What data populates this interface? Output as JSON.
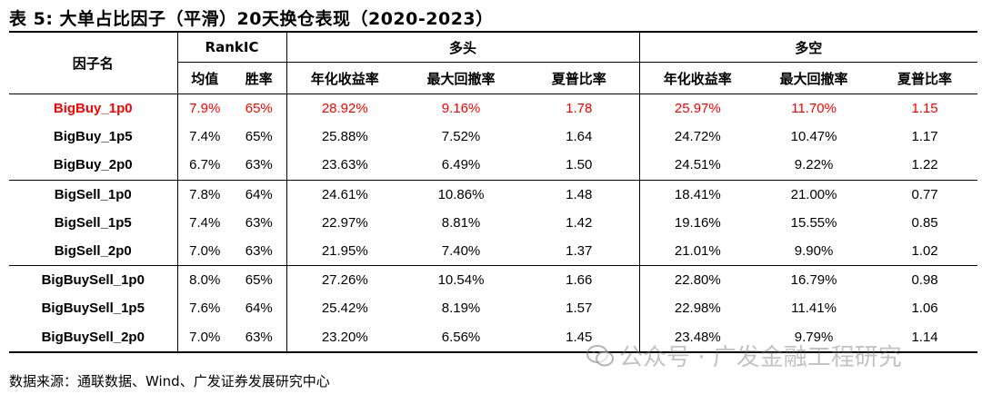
{
  "title": "表 5: 大单占比因子（平滑）20天换仓表现（2020-2023）",
  "header": {
    "factor_name": "因子名",
    "rankic": "RankIC",
    "long": "多头",
    "longshort": "多空",
    "mean": "均值",
    "winrate": "胜率",
    "long_return": "年化收益率",
    "long_mdd": "最大回撤率",
    "long_sharpe": "夏普比率",
    "ls_return": "年化收益率",
    "ls_mdd": "最大回撤率",
    "ls_sharpe": "夏普比率"
  },
  "rows": [
    {
      "name": "BigBuy_1p0",
      "mean": "7.9%",
      "win": "65%",
      "lret": "28.92%",
      "lmdd": "9.16%",
      "lsh": "1.78",
      "sret": "25.97%",
      "smdd": "11.70%",
      "ssh": "1.15",
      "highlight": true
    },
    {
      "name": "BigBuy_1p5",
      "mean": "7.4%",
      "win": "65%",
      "lret": "25.88%",
      "lmdd": "7.52%",
      "lsh": "1.64",
      "sret": "24.72%",
      "smdd": "10.47%",
      "ssh": "1.17"
    },
    {
      "name": "BigBuy_2p0",
      "mean": "6.7%",
      "win": "63%",
      "lret": "23.63%",
      "lmdd": "6.49%",
      "lsh": "1.50",
      "sret": "24.51%",
      "smdd": "9.22%",
      "ssh": "1.22"
    },
    {
      "name": "BigSell_1p0",
      "mean": "7.8%",
      "win": "64%",
      "lret": "24.61%",
      "lmdd": "10.86%",
      "lsh": "1.48",
      "sret": "18.41%",
      "smdd": "21.00%",
      "ssh": "0.77"
    },
    {
      "name": "BigSell_1p5",
      "mean": "7.4%",
      "win": "63%",
      "lret": "22.97%",
      "lmdd": "8.81%",
      "lsh": "1.42",
      "sret": "19.16%",
      "smdd": "15.55%",
      "ssh": "0.85"
    },
    {
      "name": "BigSell_2p0",
      "mean": "7.0%",
      "win": "63%",
      "lret": "21.95%",
      "lmdd": "7.40%",
      "lsh": "1.37",
      "sret": "21.01%",
      "smdd": "9.90%",
      "ssh": "1.02"
    },
    {
      "name": "BigBuySell_1p0",
      "mean": "8.0%",
      "win": "65%",
      "lret": "27.26%",
      "lmdd": "10.54%",
      "lsh": "1.66",
      "sret": "22.80%",
      "smdd": "16.79%",
      "ssh": "0.98"
    },
    {
      "name": "BigBuySell_1p5",
      "mean": "7.6%",
      "win": "64%",
      "lret": "25.42%",
      "lmdd": "8.19%",
      "lsh": "1.57",
      "sret": "22.98%",
      "smdd": "11.41%",
      "ssh": "1.06"
    },
    {
      "name": "BigBuySell_2p0",
      "mean": "7.0%",
      "win": "63%",
      "lret": "23.20%",
      "lmdd": "6.56%",
      "lsh": "1.45",
      "sret": "23.48%",
      "smdd": "9.79%",
      "ssh": "1.14"
    }
  ],
  "source": "数据来源：通联数据、Wind、广发证券发展研究中心",
  "watermark": "公众号 · 广发金融工程研究",
  "colors": {
    "highlight": "#ff0000",
    "text": "#000000"
  }
}
